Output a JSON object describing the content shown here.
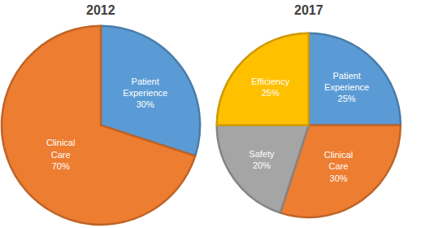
{
  "chart_data": [
    {
      "type": "pie",
      "title": "2012",
      "categories": [
        "Patient Experience",
        "Clinical Care"
      ],
      "values": [
        30,
        70
      ],
      "value_labels": [
        "30%",
        "70%"
      ],
      "colors": [
        "#5B9BD5",
        "#ED7D31"
      ],
      "data_labels": true
    },
    {
      "type": "pie",
      "title": "2017",
      "categories": [
        "Patient Experience",
        "Clinical Care",
        "Safety",
        "Efficiency"
      ],
      "values": [
        25,
        30,
        20,
        25
      ],
      "value_labels": [
        "25%",
        "30%",
        "20%",
        "25%"
      ],
      "colors": [
        "#5B9BD5",
        "#ED7D31",
        "#A5A5A5",
        "#FFC000"
      ],
      "data_labels": true
    }
  ]
}
